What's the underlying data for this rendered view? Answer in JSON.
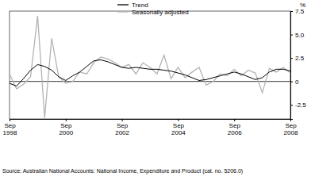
{
  "chart_data": {
    "type": "line",
    "ylabel": "%",
    "source": "Source: Australian National Accounts: National Income, Expenditure and Product (cat. no. 5206.0)",
    "categories": [
      "Sep 1998",
      null,
      null,
      null,
      null,
      null,
      null,
      null,
      "Sep 2000",
      null,
      null,
      null,
      null,
      null,
      null,
      null,
      "Sep 2002",
      null,
      null,
      null,
      null,
      null,
      null,
      null,
      "Sep 2004",
      null,
      null,
      null,
      null,
      null,
      null,
      null,
      "Sep 2006",
      null,
      null,
      null,
      null,
      null,
      null,
      null,
      "Sep 2008"
    ],
    "series": [
      {
        "name": "Trend",
        "color": "#000000",
        "values": [
          -0.2,
          -0.5,
          0.3,
          1.2,
          1.8,
          1.6,
          1.2,
          0.5,
          0.1,
          0.6,
          1.0,
          1.6,
          2.2,
          2.3,
          2.1,
          1.8,
          1.5,
          1.4,
          1.5,
          1.4,
          1.3,
          1.3,
          1.2,
          1.1,
          0.9,
          0.7,
          0.4,
          0.1,
          0.2,
          0.4,
          0.6,
          0.8,
          1.0,
          0.8,
          0.5,
          0.2,
          0.4,
          1.0,
          1.3,
          1.3,
          1.1
        ]
      },
      {
        "name": "Seasonally adjusted",
        "color": "#b3b3b3",
        "values": [
          0.8,
          -0.8,
          -0.3,
          0.5,
          7.0,
          -3.9,
          4.6,
          0.5,
          -0.2,
          0.0,
          1.0,
          0.8,
          2.0,
          2.6,
          2.4,
          2.0,
          1.5,
          1.8,
          0.8,
          2.0,
          1.5,
          0.8,
          2.8,
          0.3,
          1.5,
          0.4,
          1.0,
          1.5,
          -0.4,
          0.0,
          0.8,
          0.6,
          1.3,
          0.6,
          1.2,
          0.9,
          -1.2,
          1.4,
          1.0,
          1.5,
          0.9
        ]
      }
    ],
    "ylim": [
      -4,
      7.5
    ],
    "yticks": [
      -2.5,
      0,
      {
        "value": 2.5,
        "label": "2.5"
      },
      {
        "value": 5,
        "label": "5.0"
      },
      7.5
    ],
    "grid": false,
    "legend": "top-left"
  }
}
